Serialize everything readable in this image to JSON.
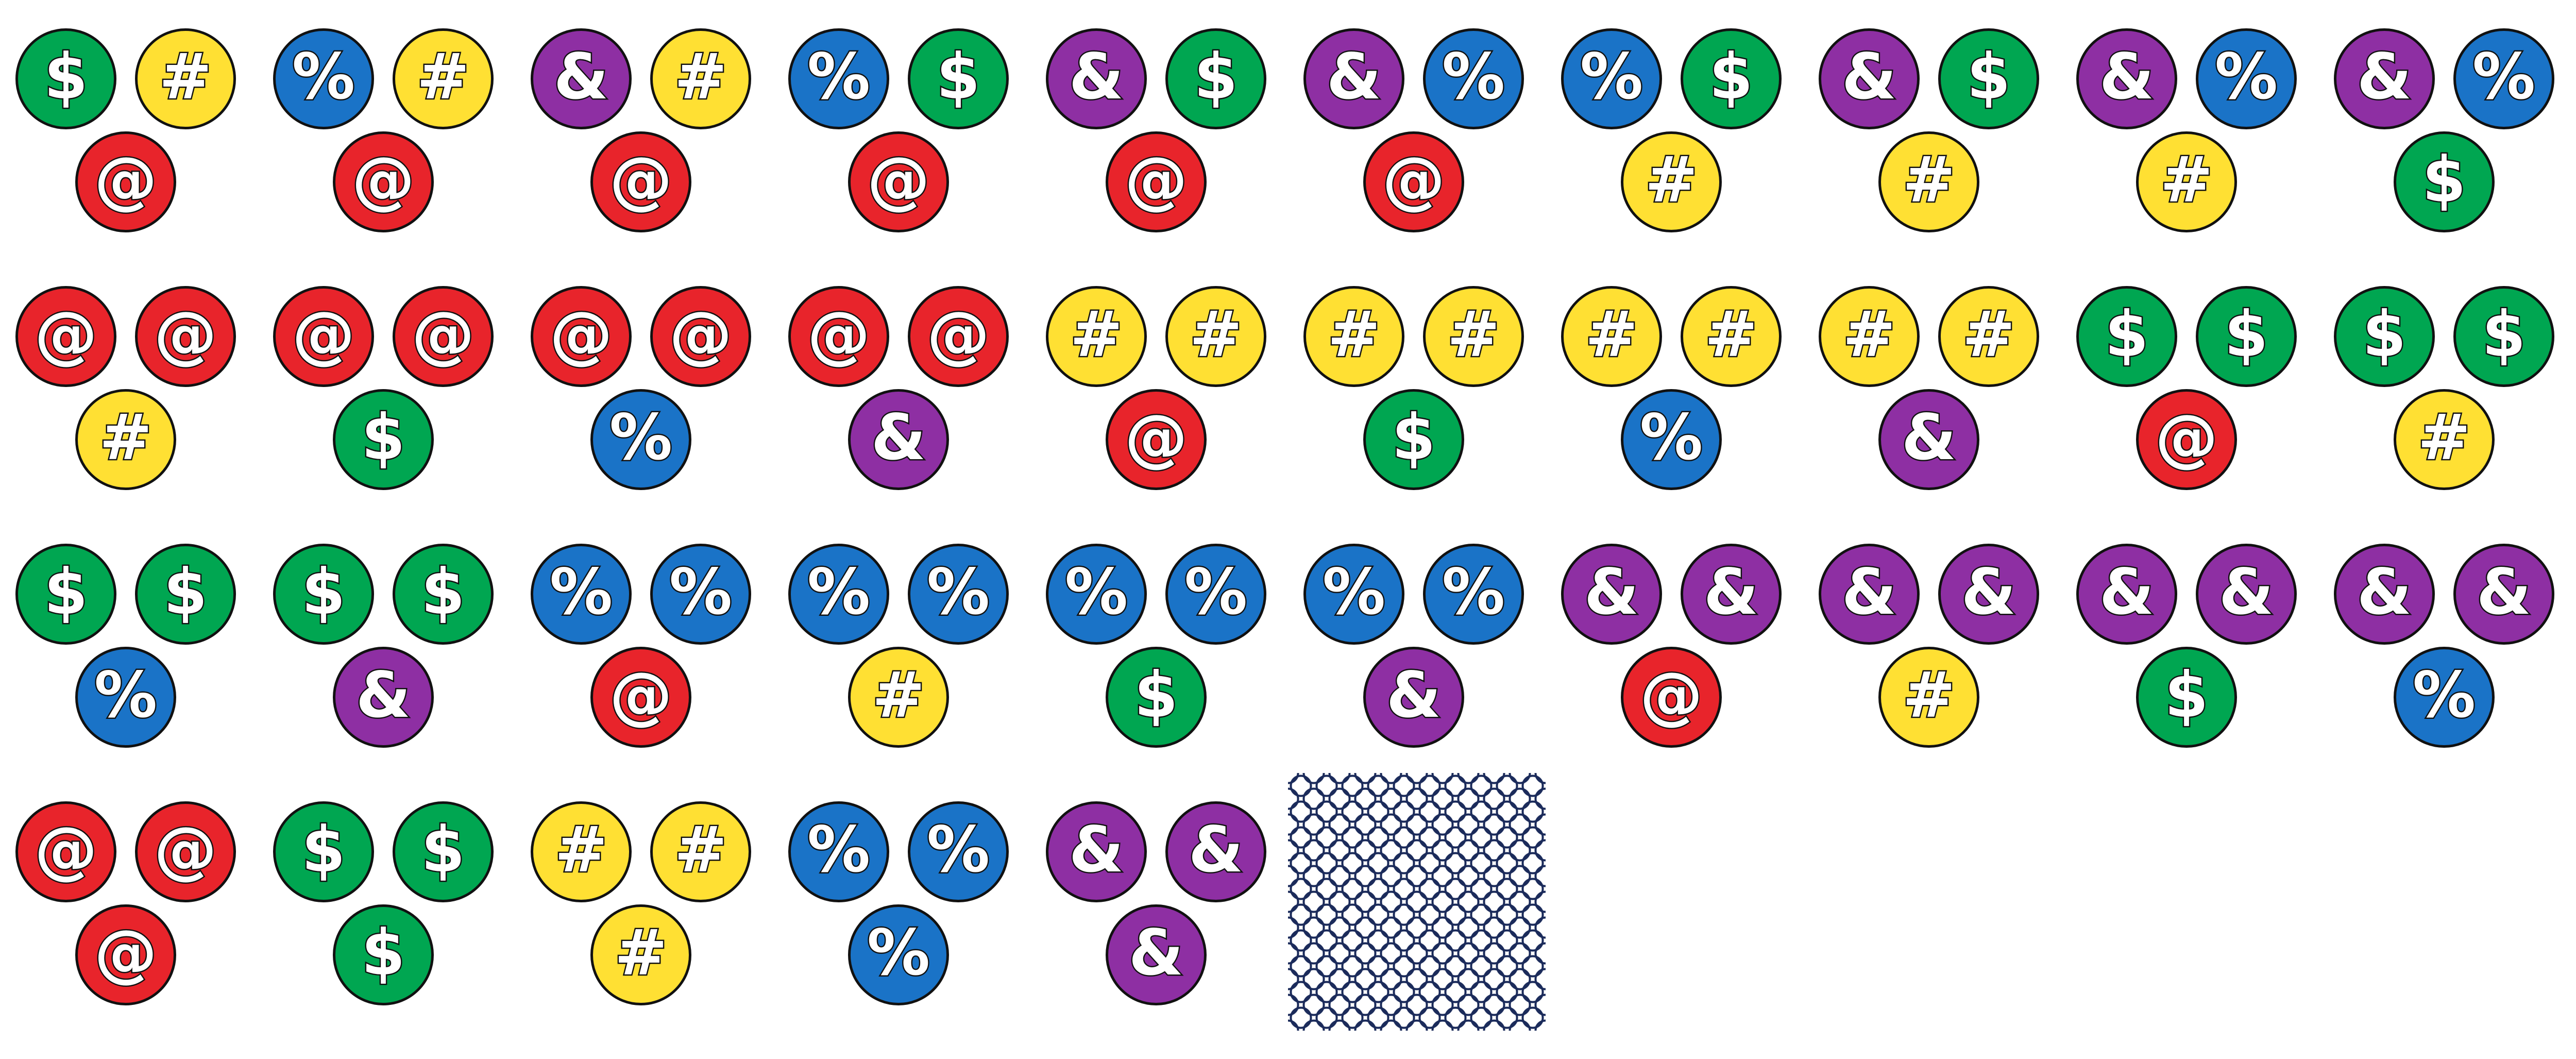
{
  "palette": {
    "at": "#e8242b",
    "hash": "#ffe033",
    "dollar": "#00a651",
    "percent": "#1a73c7",
    "amp": "#8e2fa3"
  },
  "texture_swatch": {
    "pattern": "interlocking-circles",
    "color": "#1a2a5a"
  },
  "tiles": [
    {
      "top_left": "$",
      "top_right": "#",
      "bottom": "@"
    },
    {
      "top_left": "%",
      "top_right": "#",
      "bottom": "@"
    },
    {
      "top_left": "&",
      "top_right": "#",
      "bottom": "@"
    },
    {
      "top_left": "%",
      "top_right": "$",
      "bottom": "@"
    },
    {
      "top_left": "&",
      "top_right": "$",
      "bottom": "@"
    },
    {
      "top_left": "&",
      "top_right": "%",
      "bottom": "@"
    },
    {
      "top_left": "%",
      "top_right": "$",
      "bottom": "#"
    },
    {
      "top_left": "&",
      "top_right": "$",
      "bottom": "#"
    },
    {
      "top_left": "&",
      "top_right": "%",
      "bottom": "#"
    },
    {
      "top_left": "&",
      "top_right": "%",
      "bottom": "$"
    },
    {
      "top_left": "@",
      "top_right": "@",
      "bottom": "#"
    },
    {
      "top_left": "@",
      "top_right": "@",
      "bottom": "$"
    },
    {
      "top_left": "@",
      "top_right": "@",
      "bottom": "%"
    },
    {
      "top_left": "@",
      "top_right": "@",
      "bottom": "&"
    },
    {
      "top_left": "#",
      "top_right": "#",
      "bottom": "@"
    },
    {
      "top_left": "#",
      "top_right": "#",
      "bottom": "$"
    },
    {
      "top_left": "#",
      "top_right": "#",
      "bottom": "%"
    },
    {
      "top_left": "#",
      "top_right": "#",
      "bottom": "&"
    },
    {
      "top_left": "$",
      "top_right": "$",
      "bottom": "@"
    },
    {
      "top_left": "$",
      "top_right": "$",
      "bottom": "#"
    },
    {
      "top_left": "$",
      "top_right": "$",
      "bottom": "%"
    },
    {
      "top_left": "$",
      "top_right": "$",
      "bottom": "&"
    },
    {
      "top_left": "%",
      "top_right": "%",
      "bottom": "@"
    },
    {
      "top_left": "%",
      "top_right": "%",
      "bottom": "#"
    },
    {
      "top_left": "%",
      "top_right": "%",
      "bottom": "$"
    },
    {
      "top_left": "%",
      "top_right": "%",
      "bottom": "&"
    },
    {
      "top_left": "&",
      "top_right": "&",
      "bottom": "@"
    },
    {
      "top_left": "&",
      "top_right": "&",
      "bottom": "#"
    },
    {
      "top_left": "&",
      "top_right": "&",
      "bottom": "$"
    },
    {
      "top_left": "&",
      "top_right": "&",
      "bottom": "%"
    },
    {
      "top_left": "@",
      "top_right": "@",
      "bottom": "@"
    },
    {
      "top_left": "$",
      "top_right": "$",
      "bottom": "$"
    },
    {
      "top_left": "#",
      "top_right": "#",
      "bottom": "#"
    },
    {
      "top_left": "%",
      "top_right": "%",
      "bottom": "%"
    },
    {
      "top_left": "&",
      "top_right": "&",
      "bottom": "&"
    }
  ]
}
